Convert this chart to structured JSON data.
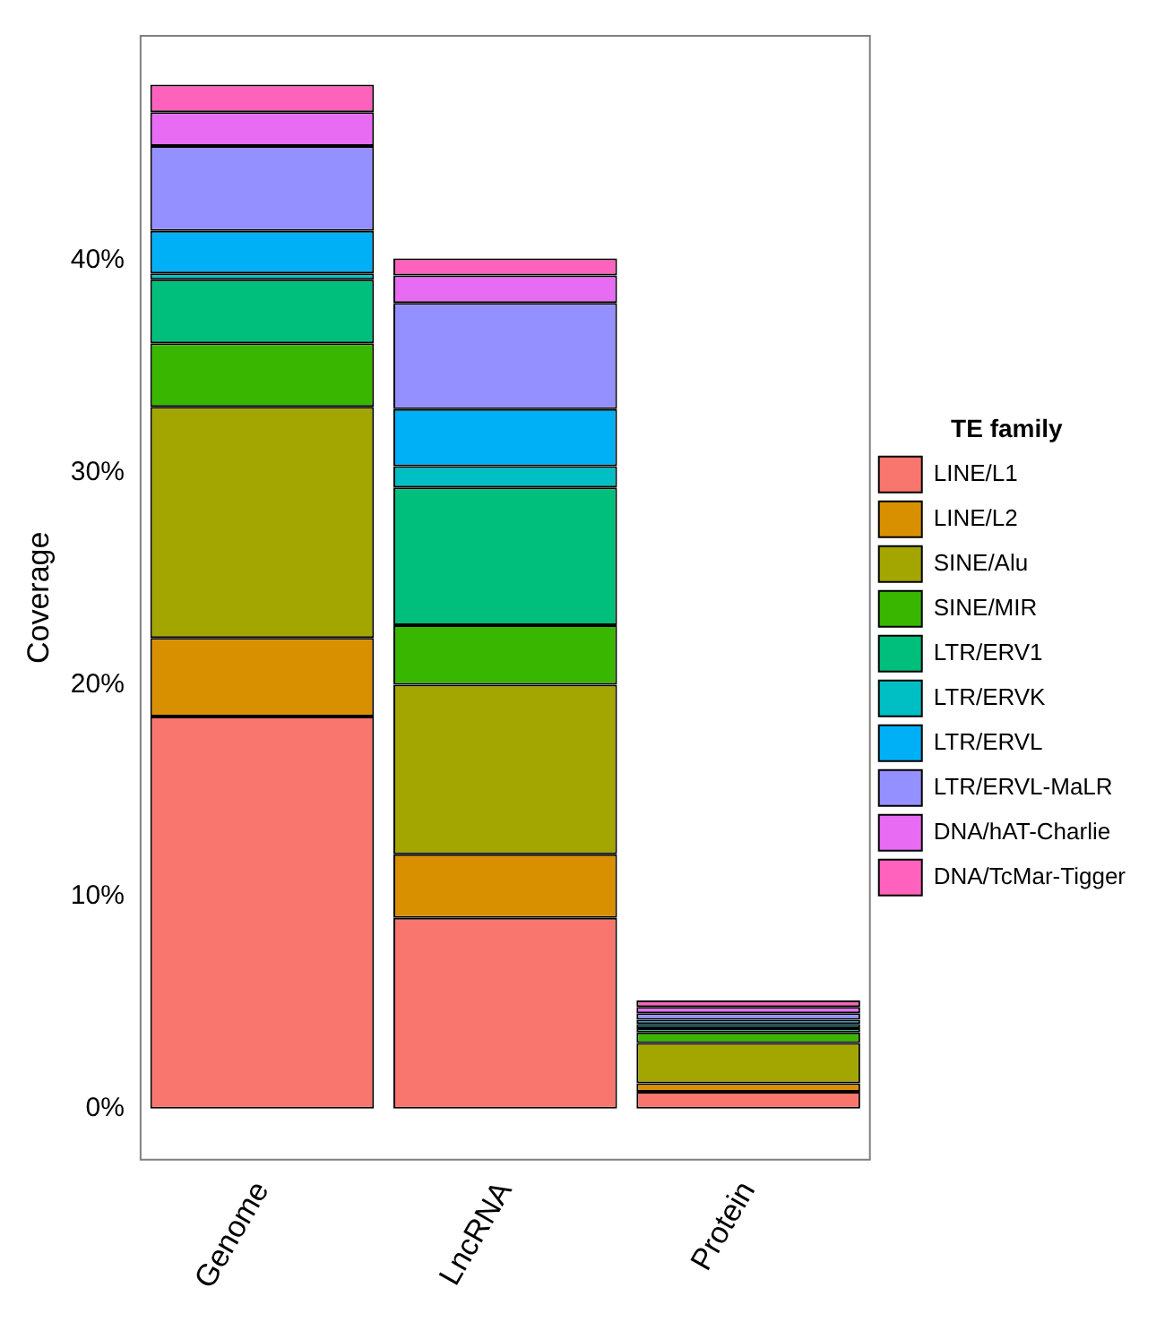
{
  "chart_data": {
    "type": "bar",
    "stacked": true,
    "ylabel": "Coverage",
    "legend_title": "TE family",
    "legend": "right",
    "grid": false,
    "categories": [
      "Genome",
      "LncRNA",
      "Protein"
    ],
    "ylim": [
      -2.4,
      50.6
    ],
    "yticks": [
      {
        "value": 0,
        "label": "0%"
      },
      {
        "value": 10,
        "label": "10%"
      },
      {
        "value": 20,
        "label": "20%"
      },
      {
        "value": 30,
        "label": "30%"
      },
      {
        "value": 40,
        "label": "40%"
      }
    ],
    "series": [
      {
        "name": "LINE/L1",
        "color": "#f8766d",
        "values": [
          18.5,
          9.0,
          0.8
        ]
      },
      {
        "name": "LINE/L2",
        "color": "#d89000",
        "values": [
          3.7,
          3.0,
          0.4
        ]
      },
      {
        "name": "SINE/Alu",
        "color": "#a3a500",
        "values": [
          10.9,
          8.0,
          1.9
        ]
      },
      {
        "name": "SINE/MIR",
        "color": "#39b600",
        "values": [
          3.0,
          2.8,
          0.5
        ]
      },
      {
        "name": "LTR/ERV1",
        "color": "#00bf7d",
        "values": [
          3.0,
          6.5,
          0.2
        ]
      },
      {
        "name": "LTR/ERVK",
        "color": "#00bfc4",
        "values": [
          0.3,
          1.0,
          0.2
        ]
      },
      {
        "name": "LTR/ERVL",
        "color": "#00b0f6",
        "values": [
          2.0,
          2.7,
          0.2
        ]
      },
      {
        "name": "LTR/ERVL-MaLR",
        "color": "#9590ff",
        "values": [
          4.0,
          5.0,
          0.3
        ]
      },
      {
        "name": "DNA/hAT-Charlie",
        "color": "#e76bf3",
        "values": [
          1.6,
          1.3,
          0.3
        ]
      },
      {
        "name": "DNA/TcMar-Tigger",
        "color": "#ff62bc",
        "values": [
          1.3,
          0.8,
          0.3
        ]
      }
    ]
  }
}
